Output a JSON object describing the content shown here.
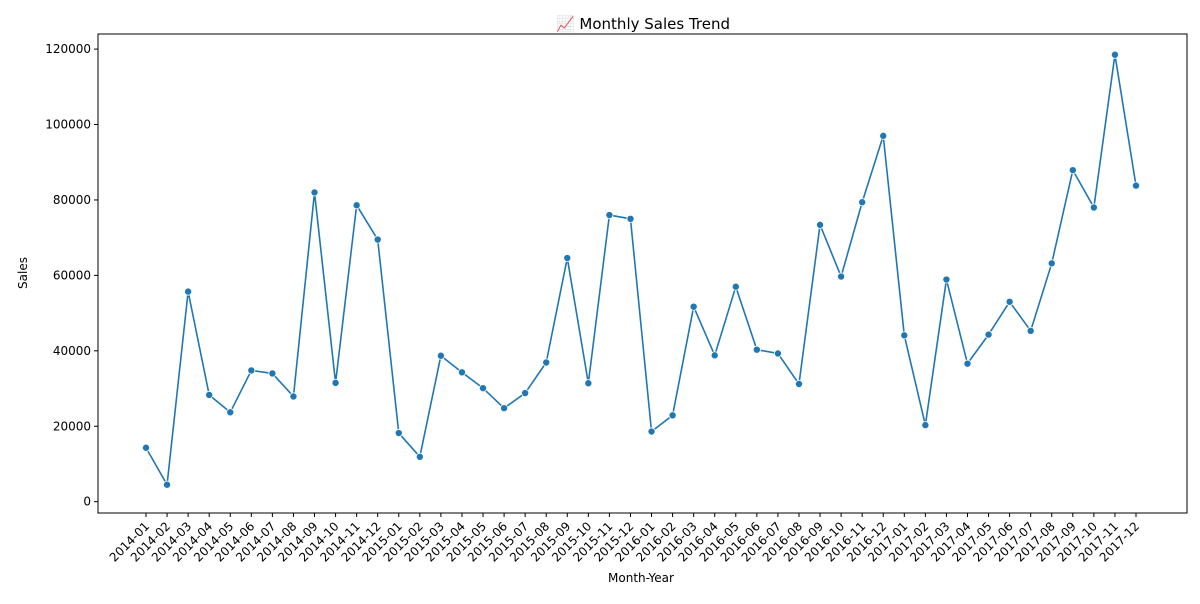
{
  "chart_data": {
    "type": "line",
    "title": "📈 Monthly Sales Trend",
    "xlabel": "Month-Year",
    "ylabel": "Sales",
    "ylim": [
      -3000,
      124000
    ],
    "yticks": [
      0,
      20000,
      40000,
      60000,
      80000,
      100000,
      120000
    ],
    "grid": false,
    "colors": {
      "line": "#1f77b4",
      "marker": "#1f77b4"
    },
    "categories": [
      "2014-01",
      "2014-02",
      "2014-03",
      "2014-04",
      "2014-05",
      "2014-06",
      "2014-07",
      "2014-08",
      "2014-09",
      "2014-10",
      "2014-11",
      "2014-12",
      "2015-01",
      "2015-02",
      "2015-03",
      "2015-04",
      "2015-05",
      "2015-06",
      "2015-07",
      "2015-08",
      "2015-09",
      "2015-10",
      "2015-11",
      "2015-12",
      "2016-01",
      "2016-02",
      "2016-03",
      "2016-04",
      "2016-05",
      "2016-06",
      "2016-07",
      "2016-08",
      "2016-09",
      "2016-10",
      "2016-11",
      "2016-12",
      "2017-01",
      "2017-02",
      "2017-03",
      "2017-04",
      "2017-05",
      "2017-06",
      "2017-07",
      "2017-08",
      "2017-09",
      "2017-10",
      "2017-11",
      "2017-12"
    ],
    "series": [
      {
        "values": [
          14300,
          4500,
          55700,
          28300,
          23700,
          34800,
          34000,
          27900,
          82000,
          31500,
          78600,
          69500,
          18200,
          11900,
          38700,
          34300,
          30100,
          24800,
          28800,
          36900,
          64600,
          31400,
          76000,
          75000,
          18600,
          22900,
          51700,
          38800,
          57000,
          40300,
          39300,
          31200,
          73400,
          59700,
          79400,
          97000,
          44100,
          20300,
          58900,
          36600,
          44300,
          53000,
          45300,
          63200,
          87900,
          78000,
          118500,
          83800
        ]
      }
    ]
  }
}
